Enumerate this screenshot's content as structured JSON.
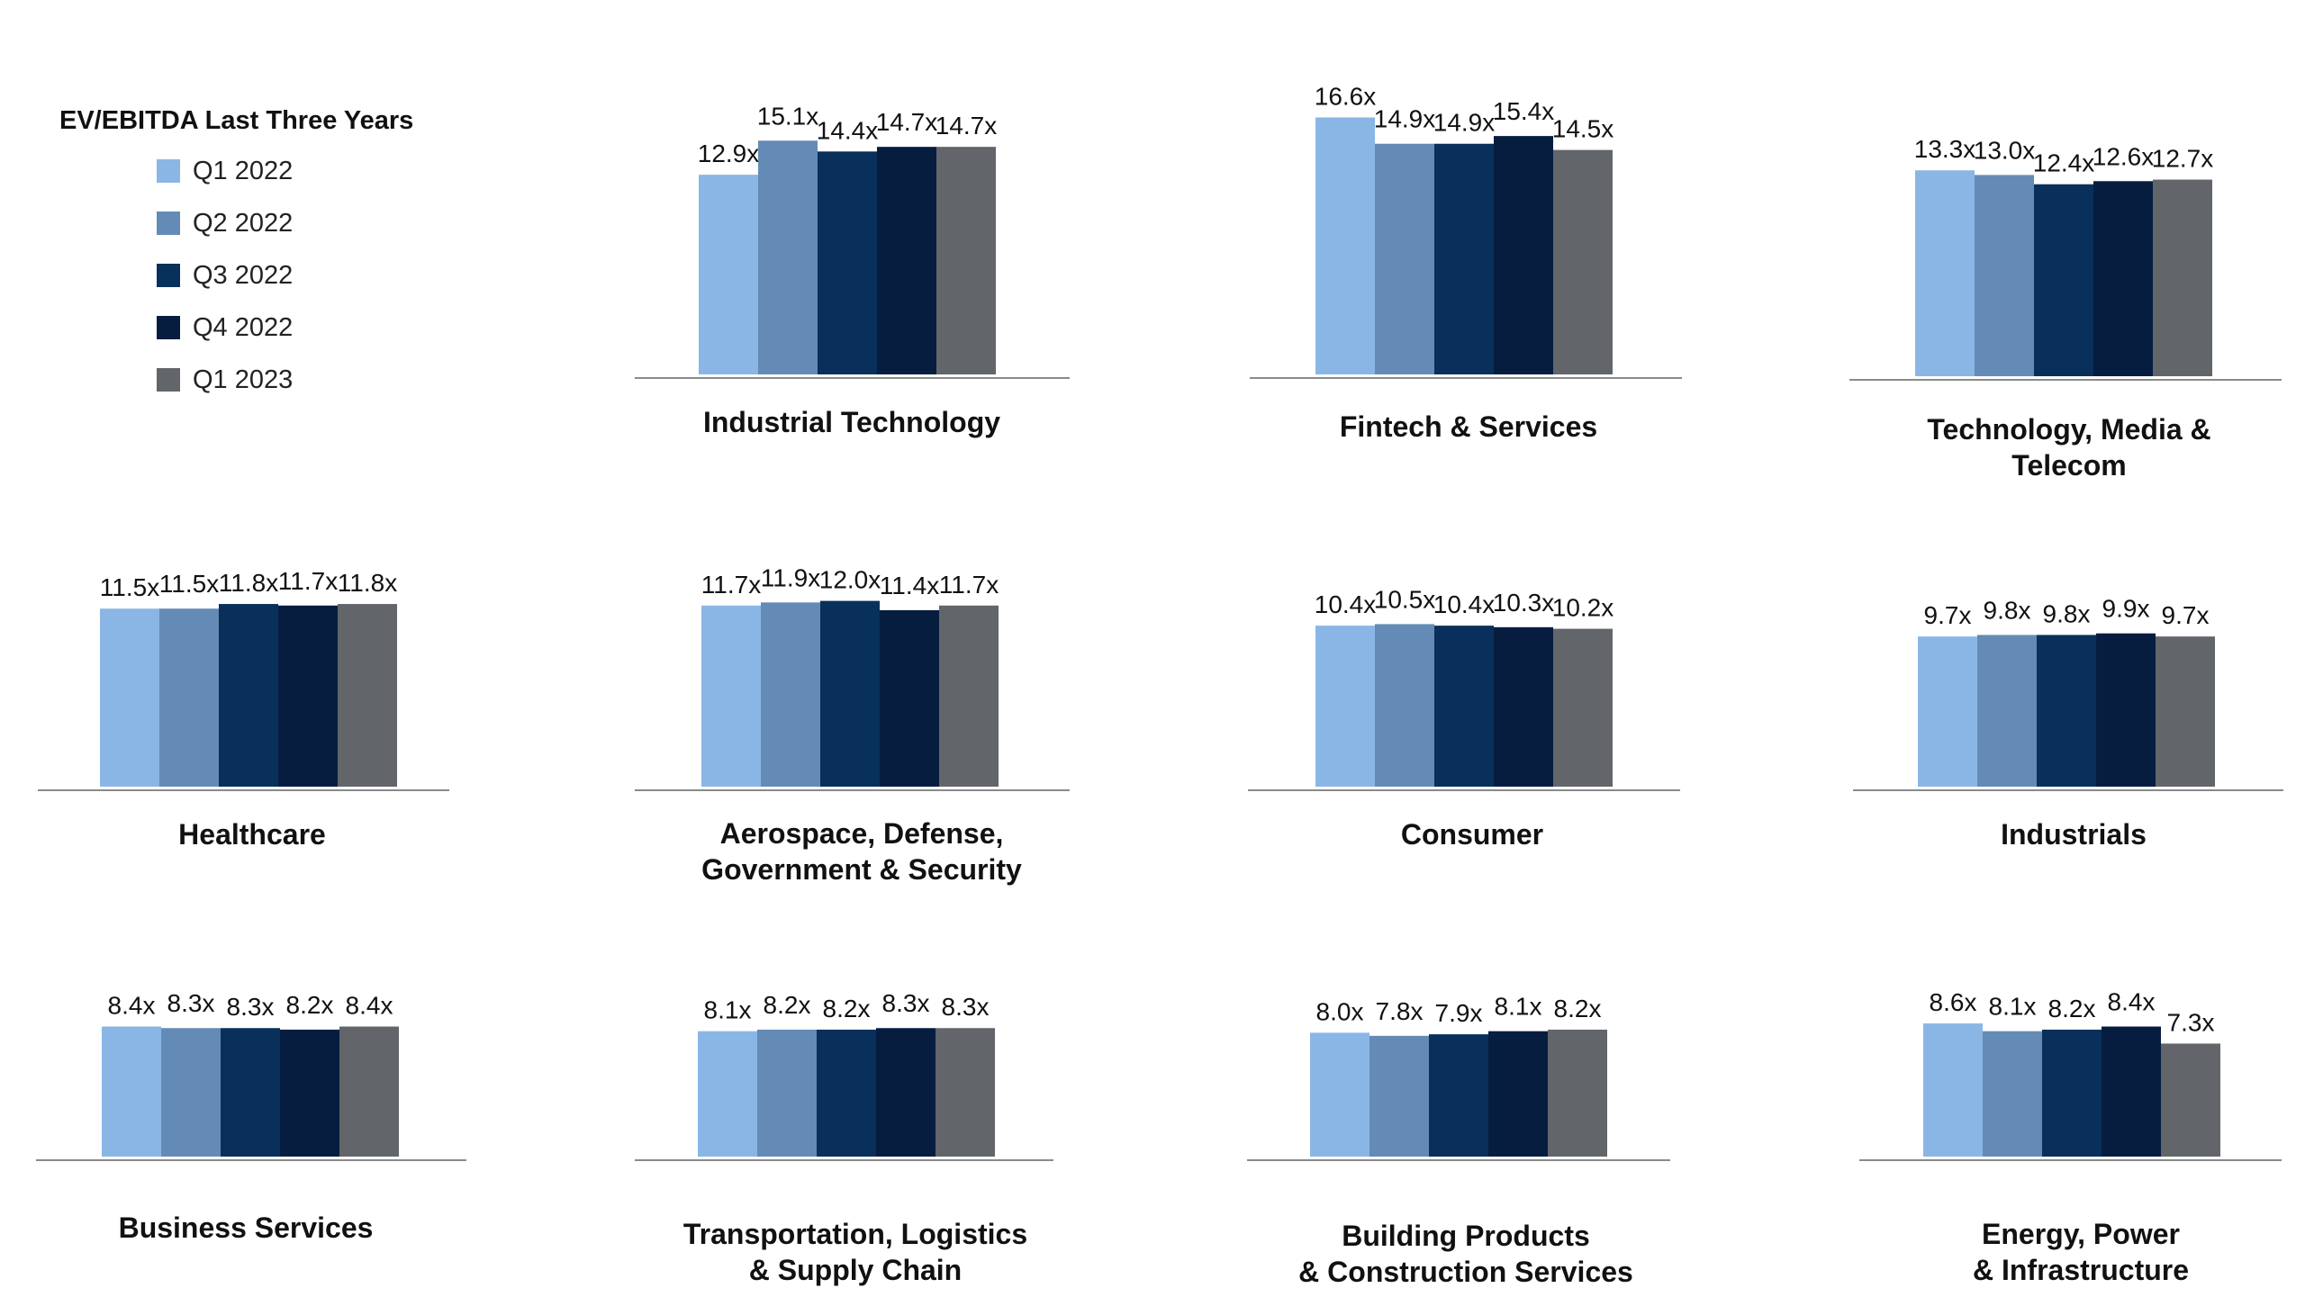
{
  "chart_data": {
    "type": "bar",
    "title": "",
    "legend": {
      "title": "EV/EBITDA Last Three Years",
      "placement": "top-left",
      "entries": [
        "Q1 2022",
        "Q2 2022",
        "Q3 2022",
        "Q4 2022",
        "Q1 2023"
      ]
    },
    "series_colors": [
      "#8ab6e6",
      "#648bb5",
      "#08305a",
      "#061d40",
      "#62656a"
    ],
    "value_suffix": "x",
    "grid": false,
    "panels": [
      {
        "name": "Industrial Technology",
        "values": [
          12.9,
          15.1,
          14.4,
          14.7,
          14.7
        ],
        "labels": [
          "12.9x",
          "15.1x",
          "14.4x",
          "14.7x",
          "14.7x"
        ]
      },
      {
        "name": "Fintech & Services",
        "values": [
          16.6,
          14.9,
          14.9,
          15.4,
          14.5
        ],
        "labels": [
          "16.6x",
          "14.9x",
          "14.9x",
          "15.4x",
          "14.5x"
        ]
      },
      {
        "name": "Technology, Media & Telecom",
        "values": [
          13.3,
          13.0,
          12.4,
          12.6,
          12.7
        ],
        "labels": [
          "13.3x",
          "13.0x",
          "12.4x",
          "12.6x",
          "12.7x"
        ]
      },
      {
        "name": "Healthcare",
        "values": [
          11.5,
          11.5,
          11.8,
          11.7,
          11.8
        ],
        "labels": [
          "11.5x",
          "11.5x",
          "11.8x",
          "11.7x",
          "11.8x"
        ]
      },
      {
        "name": "Aerospace, Defense, Government & Security",
        "values": [
          11.7,
          11.9,
          12.0,
          11.4,
          11.7
        ],
        "labels": [
          "11.7x",
          "11.9x",
          "12.0x",
          "11.4x",
          "11.7x"
        ]
      },
      {
        "name": "Consumer",
        "values": [
          10.4,
          10.5,
          10.4,
          10.3,
          10.2
        ],
        "labels": [
          "10.4x",
          "10.5x",
          "10.4x",
          "10.3x",
          "10.2x"
        ]
      },
      {
        "name": "Industrials",
        "values": [
          9.7,
          9.8,
          9.8,
          9.9,
          9.7
        ],
        "labels": [
          "9.7x",
          "9.8x",
          "9.8x",
          "9.9x",
          "9.7x"
        ]
      },
      {
        "name": "Business Services",
        "values": [
          8.4,
          8.3,
          8.3,
          8.2,
          8.4
        ],
        "labels": [
          "8.4x",
          "8.3x",
          "8.3x",
          "8.2x",
          "8.4x"
        ]
      },
      {
        "name": "Transportation, Logistics & Supply Chain",
        "values": [
          8.1,
          8.2,
          8.2,
          8.3,
          8.3
        ],
        "labels": [
          "8.1x",
          "8.2x",
          "8.2x",
          "8.3x",
          "8.3x"
        ]
      },
      {
        "name": "Building Products & Construction Services",
        "values": [
          8.0,
          7.8,
          7.9,
          8.1,
          8.2
        ],
        "labels": [
          "8.0x",
          "7.8x",
          "7.9x",
          "8.1x",
          "8.2x"
        ]
      },
      {
        "name": "Energy, Power & Infrastructure",
        "values": [
          8.6,
          8.1,
          8.2,
          8.4,
          7.3
        ],
        "labels": [
          "8.6x",
          "8.1x",
          "8.2x",
          "8.4x",
          "7.3x"
        ]
      }
    ]
  }
}
